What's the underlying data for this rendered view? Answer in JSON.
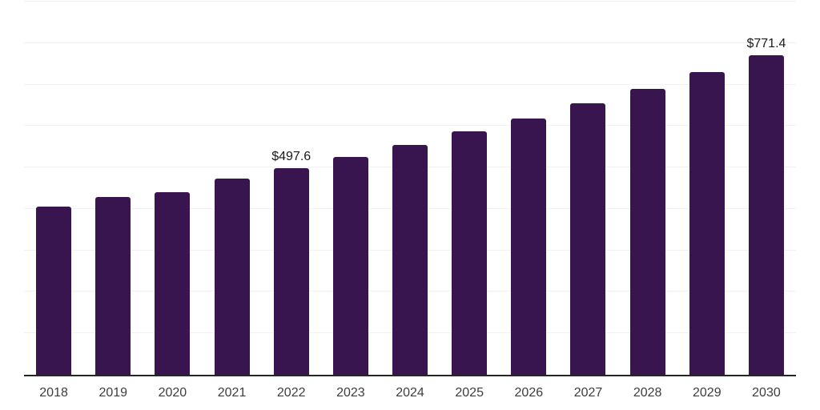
{
  "chart_data": {
    "type": "bar",
    "title": "",
    "xlabel": "",
    "ylabel": "",
    "categories": [
      "2018",
      "2019",
      "2020",
      "2021",
      "2022",
      "2023",
      "2024",
      "2025",
      "2026",
      "2027",
      "2028",
      "2029",
      "2030"
    ],
    "values": [
      405,
      428,
      441,
      473,
      497.6,
      525,
      554,
      587,
      618,
      655,
      690,
      731,
      771.4
    ],
    "data_labels": [
      "",
      "",
      "",
      "",
      "$497.6",
      "",
      "",
      "",
      "",
      "",
      "",
      "",
      "$771.4"
    ],
    "ylim": [
      0,
      900
    ],
    "gridline_step": 100,
    "grid": "horizontal-only",
    "y_axis_ticks_visible": false,
    "legend": "none"
  },
  "colors": {
    "background": "#ffffff",
    "bar": "#38154F",
    "gridline": "#f2f2f2",
    "axis_line": "#262626",
    "tick_label": "#3d3d3d",
    "value_label": "#1a1a1a"
  }
}
